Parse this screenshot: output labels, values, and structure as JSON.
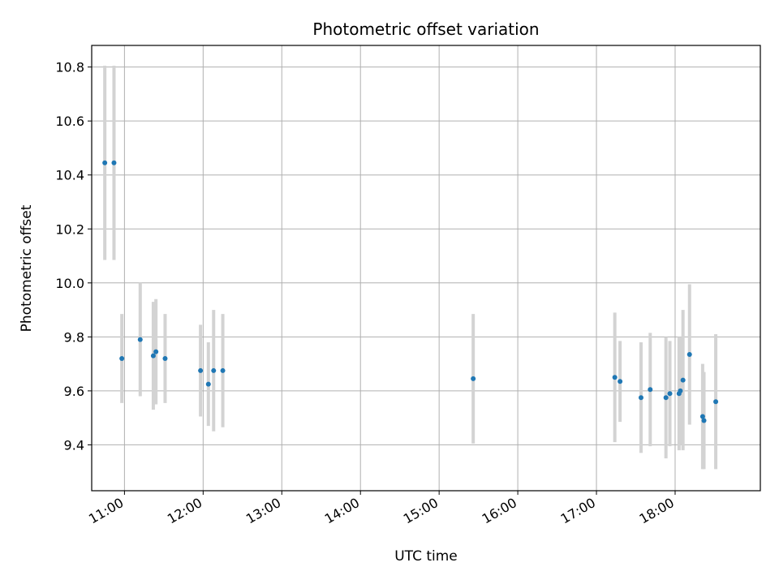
{
  "chart_data": {
    "type": "scatter",
    "title": "Photometric offset variation",
    "xlabel": "UTC time",
    "ylabel": "Photometric offset",
    "xlim": [
      "10:35",
      "19:05"
    ],
    "ylim": [
      9.23,
      10.88
    ],
    "x_ticks": [
      "11:00",
      "12:00",
      "13:00",
      "14:00",
      "15:00",
      "16:00",
      "17:00",
      "18:00"
    ],
    "y_ticks": [
      "9.4",
      "9.6",
      "9.8",
      "10.0",
      "10.2",
      "10.4",
      "10.6",
      "10.8"
    ],
    "grid": true,
    "legend": "none",
    "point_color": "#1f77b4",
    "errorbar_color": "#d3d3d3",
    "points": [
      {
        "x": "10:45",
        "y": 10.445,
        "err": 0.36
      },
      {
        "x": "10:52",
        "y": 10.445,
        "err": 0.36
      },
      {
        "x": "10:58",
        "y": 9.72,
        "err": 0.165
      },
      {
        "x": "11:12",
        "y": 9.79,
        "err": 0.21
      },
      {
        "x": "11:22",
        "y": 9.73,
        "err": 0.2
      },
      {
        "x": "11:24",
        "y": 9.745,
        "err": 0.195
      },
      {
        "x": "11:31",
        "y": 9.72,
        "err": 0.165
      },
      {
        "x": "11:58",
        "y": 9.675,
        "err": 0.17
      },
      {
        "x": "12:04",
        "y": 9.625,
        "err": 0.155
      },
      {
        "x": "12:08",
        "y": 9.675,
        "err": 0.225
      },
      {
        "x": "12:15",
        "y": 9.675,
        "err": 0.21
      },
      {
        "x": "15:26",
        "y": 9.645,
        "err": 0.24
      },
      {
        "x": "17:14",
        "y": 9.65,
        "err": 0.24
      },
      {
        "x": "17:18",
        "y": 9.635,
        "err": 0.15
      },
      {
        "x": "17:34",
        "y": 9.575,
        "err": 0.205
      },
      {
        "x": "17:41",
        "y": 9.605,
        "err": 0.21
      },
      {
        "x": "17:53",
        "y": 9.575,
        "err": 0.225
      },
      {
        "x": "17:56",
        "y": 9.59,
        "err": 0.195
      },
      {
        "x": "18:03",
        "y": 9.59,
        "err": 0.21
      },
      {
        "x": "18:04",
        "y": 9.6,
        "err": 0.2
      },
      {
        "x": "18:06",
        "y": 9.64,
        "err": 0.26
      },
      {
        "x": "18:11",
        "y": 9.735,
        "err": 0.26
      },
      {
        "x": "18:21",
        "y": 9.505,
        "err": 0.195
      },
      {
        "x": "18:22",
        "y": 9.49,
        "err": 0.18
      },
      {
        "x": "18:31",
        "y": 9.56,
        "err": 0.25
      }
    ]
  }
}
